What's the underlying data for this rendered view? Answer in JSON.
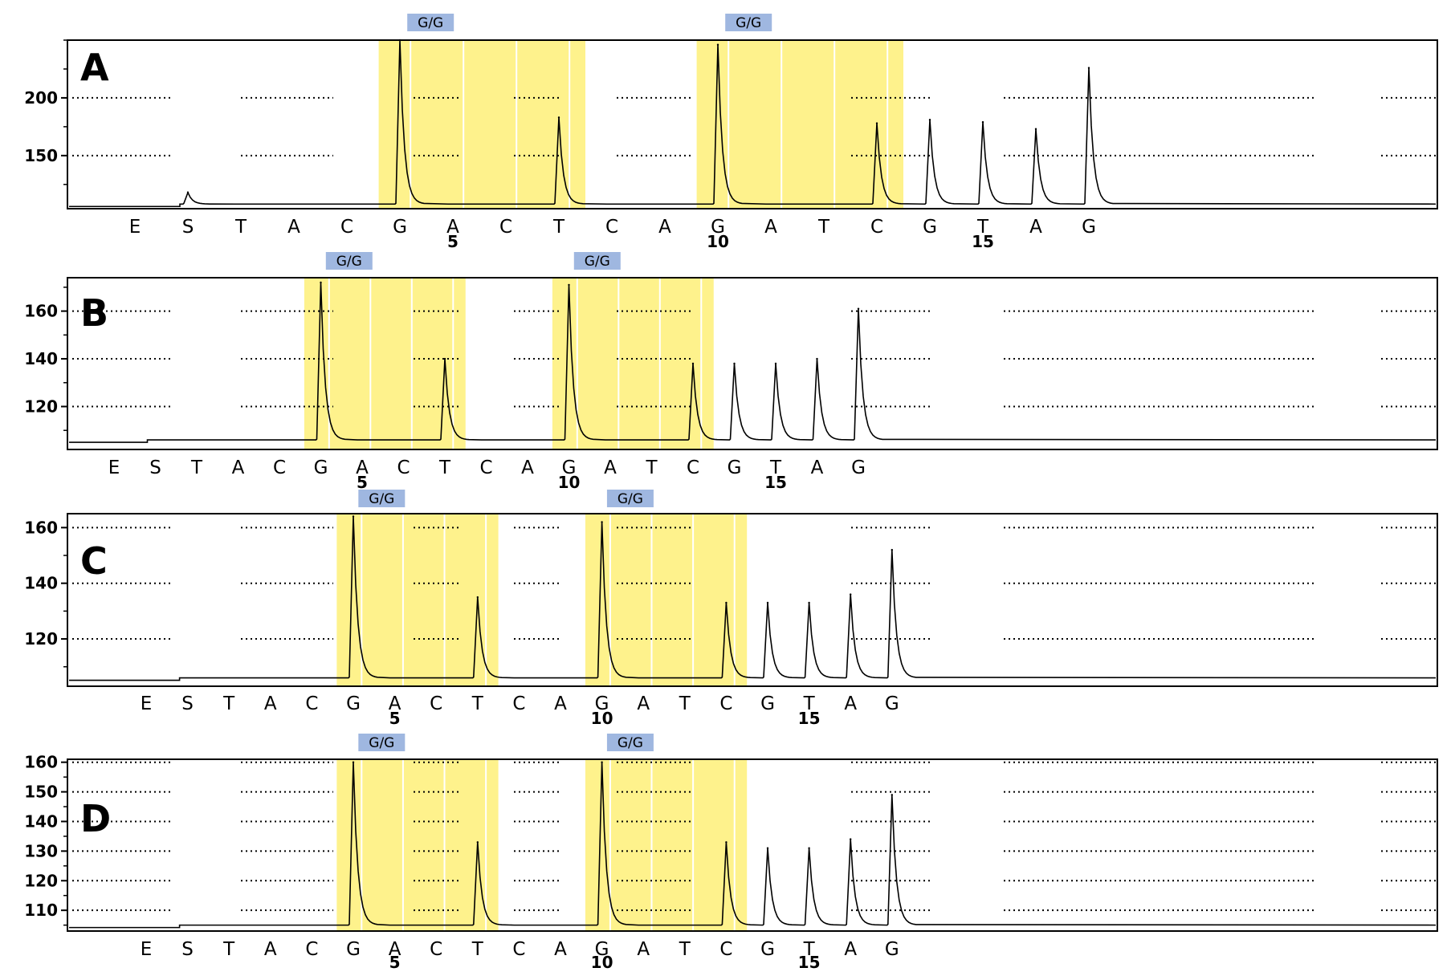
{
  "chart_data": [
    {
      "type": "line",
      "panel_label": "A",
      "ylim": [
        104,
        250
      ],
      "yticks": [
        150,
        200
      ],
      "baseline": 108,
      "dispensation": [
        "E",
        "S",
        "T",
        "A",
        "C",
        "G",
        "A",
        "C",
        "T",
        "C",
        "A",
        "G",
        "A",
        "T",
        "C",
        "G",
        "T",
        "A",
        "G"
      ],
      "position_labels": [
        {
          "index": 6,
          "label": "5"
        },
        {
          "index": 11,
          "label": "10"
        },
        {
          "index": 16,
          "label": "15"
        }
      ],
      "peaks": [
        {
          "index": 1,
          "value": 118
        },
        {
          "index": 5,
          "value": 250
        },
        {
          "index": 8,
          "value": 183
        },
        {
          "index": 11,
          "value": 246
        },
        {
          "index": 14,
          "value": 178
        },
        {
          "index": 15,
          "value": 181
        },
        {
          "index": 16,
          "value": 179
        },
        {
          "index": 17,
          "value": 173
        },
        {
          "index": 18,
          "value": 226
        }
      ],
      "snp_calls": [
        {
          "label": "G/G",
          "range": [
            4.6,
            8.5
          ]
        },
        {
          "label": "G/G",
          "range": [
            10.6,
            14.5
          ]
        }
      ],
      "highlight_color": "#fef28c",
      "call_color": "#9fb7e0"
    },
    {
      "type": "line",
      "panel_label": "B",
      "ylim": [
        102,
        174
      ],
      "yticks": [
        120,
        140,
        160
      ],
      "baseline": 106,
      "dispensation": [
        "E",
        "S",
        "T",
        "A",
        "C",
        "G",
        "A",
        "C",
        "T",
        "C",
        "A",
        "G",
        "A",
        "T",
        "C",
        "G",
        "T",
        "A",
        "G"
      ],
      "position_labels": [
        {
          "index": 6,
          "label": "5"
        },
        {
          "index": 11,
          "label": "10"
        },
        {
          "index": 16,
          "label": "15"
        }
      ],
      "peaks": [
        {
          "index": 5,
          "value": 172
        },
        {
          "index": 8,
          "value": 140
        },
        {
          "index": 11,
          "value": 171
        },
        {
          "index": 14,
          "value": 138
        },
        {
          "index": 15,
          "value": 138
        },
        {
          "index": 16,
          "value": 138
        },
        {
          "index": 17,
          "value": 140
        },
        {
          "index": 18,
          "value": 161
        }
      ],
      "snp_calls": [
        {
          "label": "G/G",
          "range": [
            4.6,
            8.5
          ]
        },
        {
          "label": "G/G",
          "range": [
            10.6,
            14.5
          ]
        }
      ],
      "highlight_color": "#fef28c",
      "call_color": "#9fb7e0"
    },
    {
      "type": "line",
      "panel_label": "C",
      "ylim": [
        103,
        165
      ],
      "yticks": [
        120,
        140,
        160
      ],
      "baseline": 106,
      "dispensation": [
        "E",
        "S",
        "T",
        "A",
        "C",
        "G",
        "A",
        "C",
        "T",
        "C",
        "A",
        "G",
        "A",
        "T",
        "C",
        "G",
        "T",
        "A",
        "G"
      ],
      "position_labels": [
        {
          "index": 6,
          "label": "5"
        },
        {
          "index": 11,
          "label": "10"
        },
        {
          "index": 16,
          "label": "15"
        }
      ],
      "peaks": [
        {
          "index": 5,
          "value": 164
        },
        {
          "index": 8,
          "value": 135
        },
        {
          "index": 11,
          "value": 162
        },
        {
          "index": 14,
          "value": 133
        },
        {
          "index": 15,
          "value": 133
        },
        {
          "index": 16,
          "value": 133
        },
        {
          "index": 17,
          "value": 136
        },
        {
          "index": 18,
          "value": 152
        }
      ],
      "snp_calls": [
        {
          "label": "G/G",
          "range": [
            4.6,
            8.5
          ]
        },
        {
          "label": "G/G",
          "range": [
            10.6,
            14.5
          ]
        }
      ],
      "highlight_color": "#fef28c",
      "call_color": "#9fb7e0"
    },
    {
      "type": "line",
      "panel_label": "D",
      "ylim": [
        103,
        161
      ],
      "yticks": [
        110,
        120,
        130,
        140,
        150,
        160
      ],
      "baseline": 105,
      "dispensation": [
        "E",
        "S",
        "T",
        "A",
        "C",
        "G",
        "A",
        "C",
        "T",
        "C",
        "A",
        "G",
        "A",
        "T",
        "C",
        "G",
        "T",
        "A",
        "G"
      ],
      "position_labels": [
        {
          "index": 6,
          "label": "5"
        },
        {
          "index": 11,
          "label": "10"
        },
        {
          "index": 16,
          "label": "15"
        }
      ],
      "peaks": [
        {
          "index": 5,
          "value": 160
        },
        {
          "index": 8,
          "value": 133
        },
        {
          "index": 11,
          "value": 160
        },
        {
          "index": 14,
          "value": 133
        },
        {
          "index": 15,
          "value": 131
        },
        {
          "index": 16,
          "value": 131
        },
        {
          "index": 17,
          "value": 134
        },
        {
          "index": 18,
          "value": 149
        }
      ],
      "snp_calls": [
        {
          "label": "G/G",
          "range": [
            4.6,
            8.5
          ]
        },
        {
          "label": "G/G",
          "range": [
            10.6,
            14.5
          ]
        }
      ],
      "highlight_color": "#fef28c",
      "call_color": "#9fb7e0"
    }
  ]
}
